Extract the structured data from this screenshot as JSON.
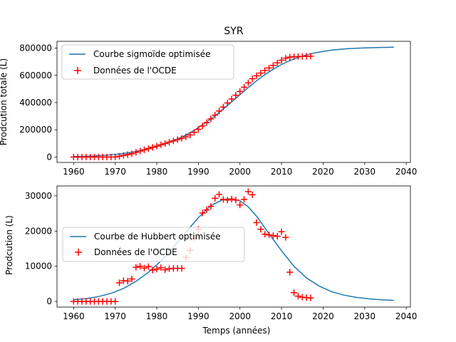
{
  "chart_data": [
    {
      "type": "line",
      "title": "SYR",
      "xlabel": "",
      "ylabel": "Prodcution totale (L)",
      "xlim": [
        1956,
        2041
      ],
      "ylim": [
        -40000,
        850000
      ],
      "xticks": [
        1960,
        1970,
        1980,
        1990,
        2000,
        2010,
        2020,
        2030,
        2040
      ],
      "yticks": [
        0,
        200000,
        400000,
        600000,
        800000
      ],
      "ytick_labels": [
        "0",
        "200000",
        "400000",
        "600000",
        "800000"
      ],
      "legend_position": "upper-left",
      "series": [
        {
          "name": "Courbe sigmoïde optimisée",
          "kind": "line",
          "color": "#1f77b4",
          "x": [
            1960,
            1962,
            1964,
            1966,
            1968,
            1970,
            1972,
            1974,
            1976,
            1978,
            1980,
            1982,
            1984,
            1986,
            1988,
            1990,
            1992,
            1994,
            1996,
            1998,
            2000,
            2002,
            2004,
            2006,
            2008,
            2010,
            2012,
            2014,
            2016,
            2018,
            2020,
            2022,
            2024,
            2026,
            2028,
            2030,
            2032,
            2034,
            2037
          ],
          "y": [
            3000,
            4500,
            6500,
            9500,
            13500,
            19000,
            26000,
            35000,
            46000,
            60000,
            77000,
            97000,
            120000,
            147000,
            178000,
            215000,
            257000,
            303000,
            353000,
            405000,
            458000,
            510000,
            560000,
            605000,
            645000,
            680000,
            708000,
            731000,
            750000,
            765000,
            776000,
            785000,
            791000,
            796000,
            799000,
            801500,
            803500,
            805000,
            807000
          ]
        },
        {
          "name": "Données de l'OCDE",
          "kind": "scatter",
          "marker": "+",
          "color": "#ff0000",
          "x": [
            1960,
            1961,
            1962,
            1963,
            1964,
            1965,
            1966,
            1967,
            1968,
            1969,
            1970,
            1971,
            1972,
            1973,
            1974,
            1975,
            1976,
            1977,
            1978,
            1979,
            1980,
            1981,
            1982,
            1983,
            1984,
            1985,
            1986,
            1987,
            1988,
            1989,
            1990,
            1991,
            1992,
            1993,
            1994,
            1995,
            1996,
            1997,
            1998,
            1999,
            2000,
            2001,
            2002,
            2003,
            2004,
            2005,
            2006,
            2007,
            2008,
            2009,
            2010,
            2011,
            2012,
            2013,
            2014,
            2015,
            2016,
            2017
          ],
          "y": [
            0,
            0,
            0,
            0,
            0,
            0,
            0,
            0,
            0,
            0,
            0,
            5500,
            11500,
            17500,
            24000,
            34000,
            44000,
            53000,
            62000,
            71000,
            80000,
            90000,
            99000,
            109000,
            118000,
            128000,
            137000,
            148000,
            162000,
            181000,
            203000,
            228000,
            253000,
            280000,
            308000,
            338000,
            367000,
            397000,
            426000,
            454000,
            482000,
            513000,
            545000,
            575000,
            597000,
            617000,
            636000,
            654000,
            673000,
            692000,
            711000,
            726000,
            734000,
            737000,
            738000,
            739000,
            740000,
            741000
          ]
        }
      ]
    },
    {
      "type": "line",
      "title": "",
      "xlabel": "Temps (années)",
      "ylabel": "Prodcution (L)",
      "xlim": [
        1956,
        2041
      ],
      "ylim": [
        -1600,
        32800
      ],
      "xticks": [
        1960,
        1970,
        1980,
        1990,
        2000,
        2010,
        2020,
        2030,
        2040
      ],
      "yticks": [
        0,
        10000,
        20000,
        30000
      ],
      "ytick_labels": [
        "0",
        "10000",
        "20000",
        "30000"
      ],
      "legend_position": "center-left",
      "series": [
        {
          "name": "Courbe de Hubbert optimisée",
          "kind": "line",
          "color": "#1f77b4",
          "x": [
            1960,
            1963,
            1966,
            1969,
            1972,
            1975,
            1978,
            1981,
            1984,
            1987,
            1990,
            1993,
            1996,
            1998,
            2000,
            2002,
            2004,
            2006,
            2008,
            2010,
            2013,
            2016,
            2019,
            2022,
            2025,
            2028,
            2031,
            2034,
            2037
          ],
          "y": [
            500,
            800,
            1400,
            2300,
            3700,
            5700,
            8300,
            11500,
            15400,
            19700,
            23800,
            27200,
            29000,
            29100,
            28600,
            26900,
            24200,
            20900,
            17600,
            14400,
            10000,
            6700,
            4400,
            2800,
            1800,
            1150,
            750,
            490,
            320
          ]
        },
        {
          "name": "Données de l'OCDE",
          "kind": "scatter",
          "marker": "+",
          "color": "#ff0000",
          "x": [
            1960,
            1961,
            1962,
            1963,
            1964,
            1965,
            1966,
            1967,
            1968,
            1969,
            1970,
            1971,
            1972,
            1973,
            1974,
            1975,
            1976,
            1977,
            1978,
            1979,
            1980,
            1981,
            1982,
            1983,
            1984,
            1985,
            1986,
            1987,
            1988,
            1989,
            1990,
            1991,
            1992,
            1993,
            1994,
            1995,
            1996,
            1997,
            1998,
            1999,
            2000,
            2001,
            2002,
            2003,
            2004,
            2005,
            2006,
            2007,
            2008,
            2009,
            2010,
            2011,
            2012,
            2013,
            2014,
            2015,
            2016,
            2017
          ],
          "y": [
            0,
            0,
            0,
            0,
            0,
            0,
            0,
            0,
            0,
            0,
            0,
            5300,
            5900,
            5800,
            6400,
            9700,
            10000,
            9500,
            9900,
            8900,
            9200,
            9600,
            9000,
            9300,
            9400,
            9400,
            9400,
            12500,
            14500,
            18000,
            20500,
            25100,
            26000,
            27000,
            29300,
            30400,
            29000,
            28800,
            29100,
            28800,
            27400,
            29000,
            31200,
            30300,
            22400,
            20500,
            19100,
            18900,
            18700,
            18500,
            19800,
            18200,
            8300,
            2500,
            1500,
            1200,
            1100,
            1000
          ]
        }
      ]
    }
  ]
}
